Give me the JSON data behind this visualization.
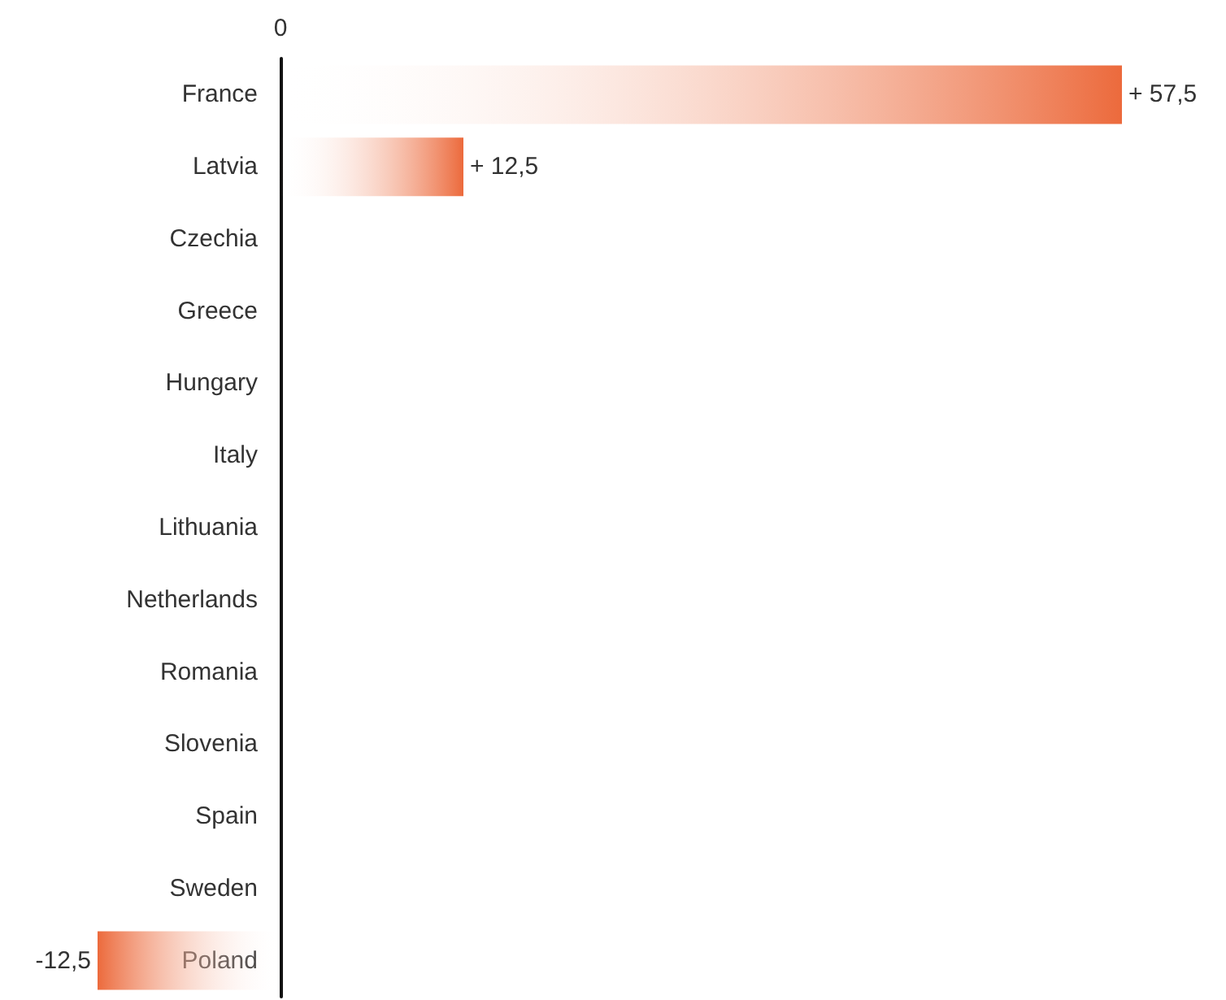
{
  "chart_data": {
    "type": "bar",
    "orientation": "horizontal",
    "categories": [
      "France",
      "Latvia",
      "Czechia",
      "Greece",
      "Hungary",
      "Italy",
      "Lithuania",
      "Netherlands",
      "Romania",
      "Slovenia",
      "Spain",
      "Sweden",
      "Poland"
    ],
    "values": [
      57.5,
      12.5,
      0,
      0,
      0,
      0,
      0,
      0,
      0,
      0,
      0,
      0,
      -12.5
    ],
    "value_labels": [
      "+ 57,5",
      "+ 12,5",
      null,
      null,
      null,
      null,
      null,
      null,
      null,
      null,
      null,
      null,
      "-12,5"
    ],
    "color": "#ec6a3c",
    "annotations": [
      "0"
    ],
    "grid": false
  }
}
